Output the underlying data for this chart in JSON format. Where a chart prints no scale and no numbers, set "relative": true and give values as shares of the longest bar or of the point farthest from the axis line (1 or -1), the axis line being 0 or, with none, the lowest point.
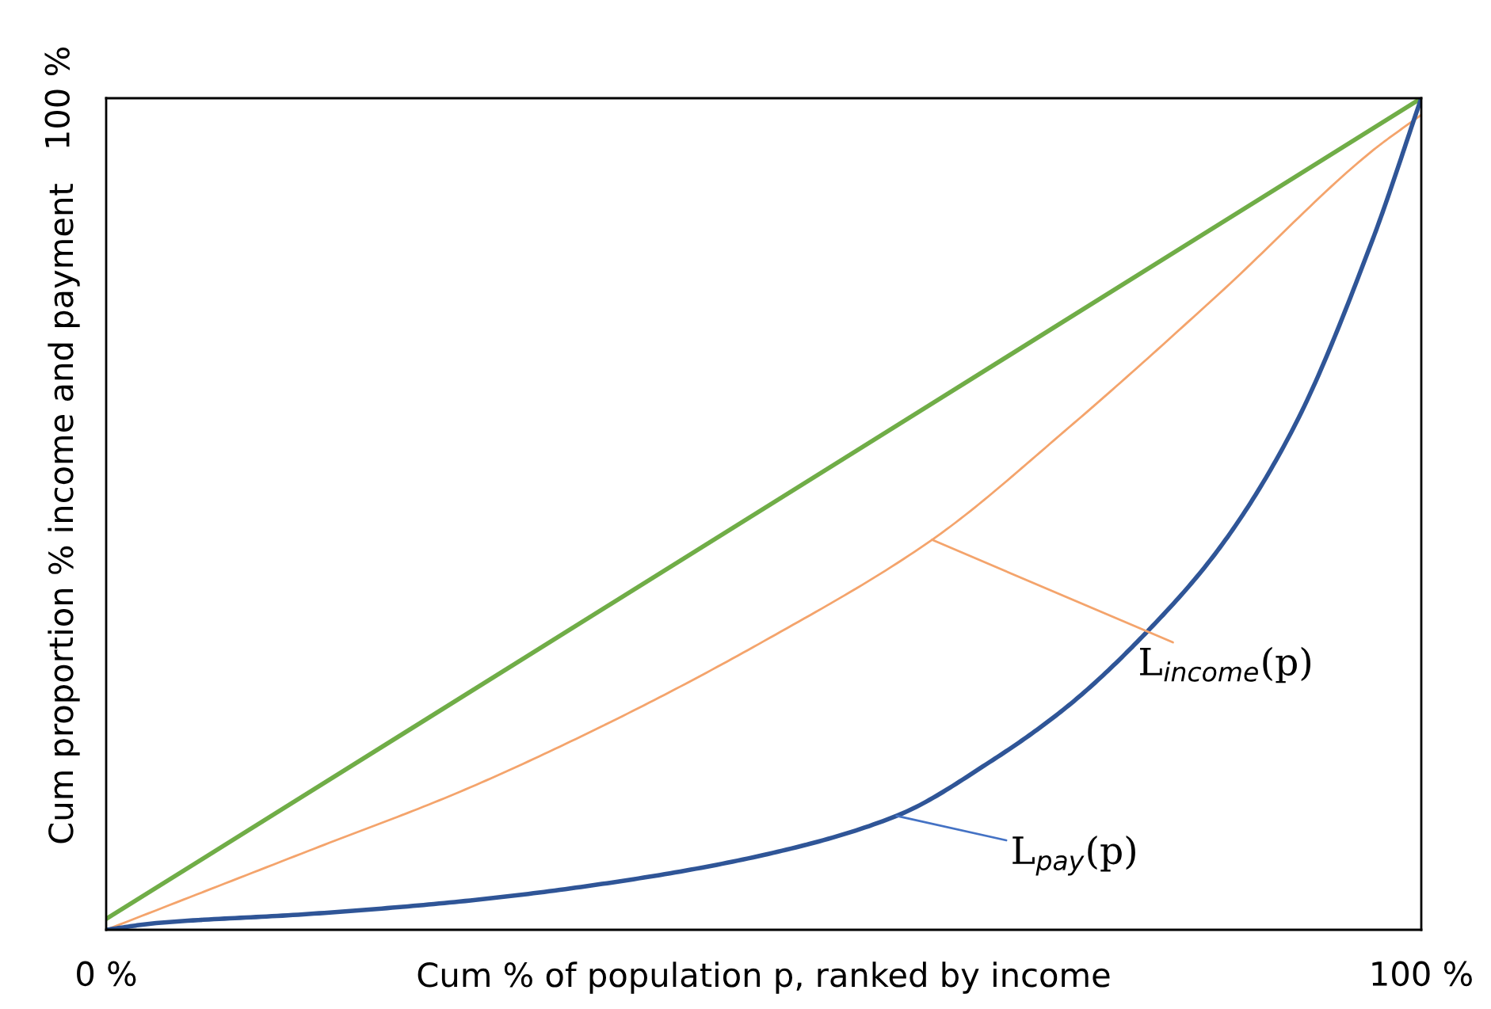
{
  "chart_data": {
    "type": "line",
    "xlabel": "Cum % of population p, ranked by income",
    "ylabel": "Cum proportion % income and payment",
    "relative": true,
    "xlim": [
      0,
      100
    ],
    "xticks": [
      {
        "value": 0,
        "label": "0 %"
      },
      {
        "value": 100,
        "label": "100 %"
      }
    ],
    "grid": false,
    "legend": false,
    "marker": "none",
    "line_style": "solid",
    "series": [
      {
        "color": "#70ad47",
        "x": [
          0,
          100
        ],
        "values": [
          0.013,
          1
        ]
      },
      {
        "color": "#f4a46c",
        "x": [
          0,
          15.4,
          26.9,
          38.5,
          50,
          62.8,
          73.2,
          84.7,
          96.3,
          100
        ],
        "values": [
          0,
          0.095,
          0.166,
          0.251,
          0.347,
          0.469,
          0.604,
          0.766,
          0.937,
          0.98
        ]
      },
      {
        "color": "#2f5597",
        "x": [
          0,
          3.8,
          15.4,
          26.9,
          38.5,
          50,
          60.1,
          67.4,
          73.2,
          79,
          84.7,
          90.3,
          96.3,
          100
        ],
        "values": [
          0,
          0.008,
          0.019,
          0.034,
          0.057,
          0.09,
          0.137,
          0.204,
          0.27,
          0.356,
          0.46,
          0.604,
          0.83,
          1
        ]
      }
    ],
    "annotations": [
      {
        "text": "L$_{income}$(p)",
        "x": 62.8,
        "y": 0.469
      },
      {
        "text": "L$_{pay}$(p)",
        "x": 60.1,
        "y": 0.137
      },
      "100 %"
    ]
  }
}
